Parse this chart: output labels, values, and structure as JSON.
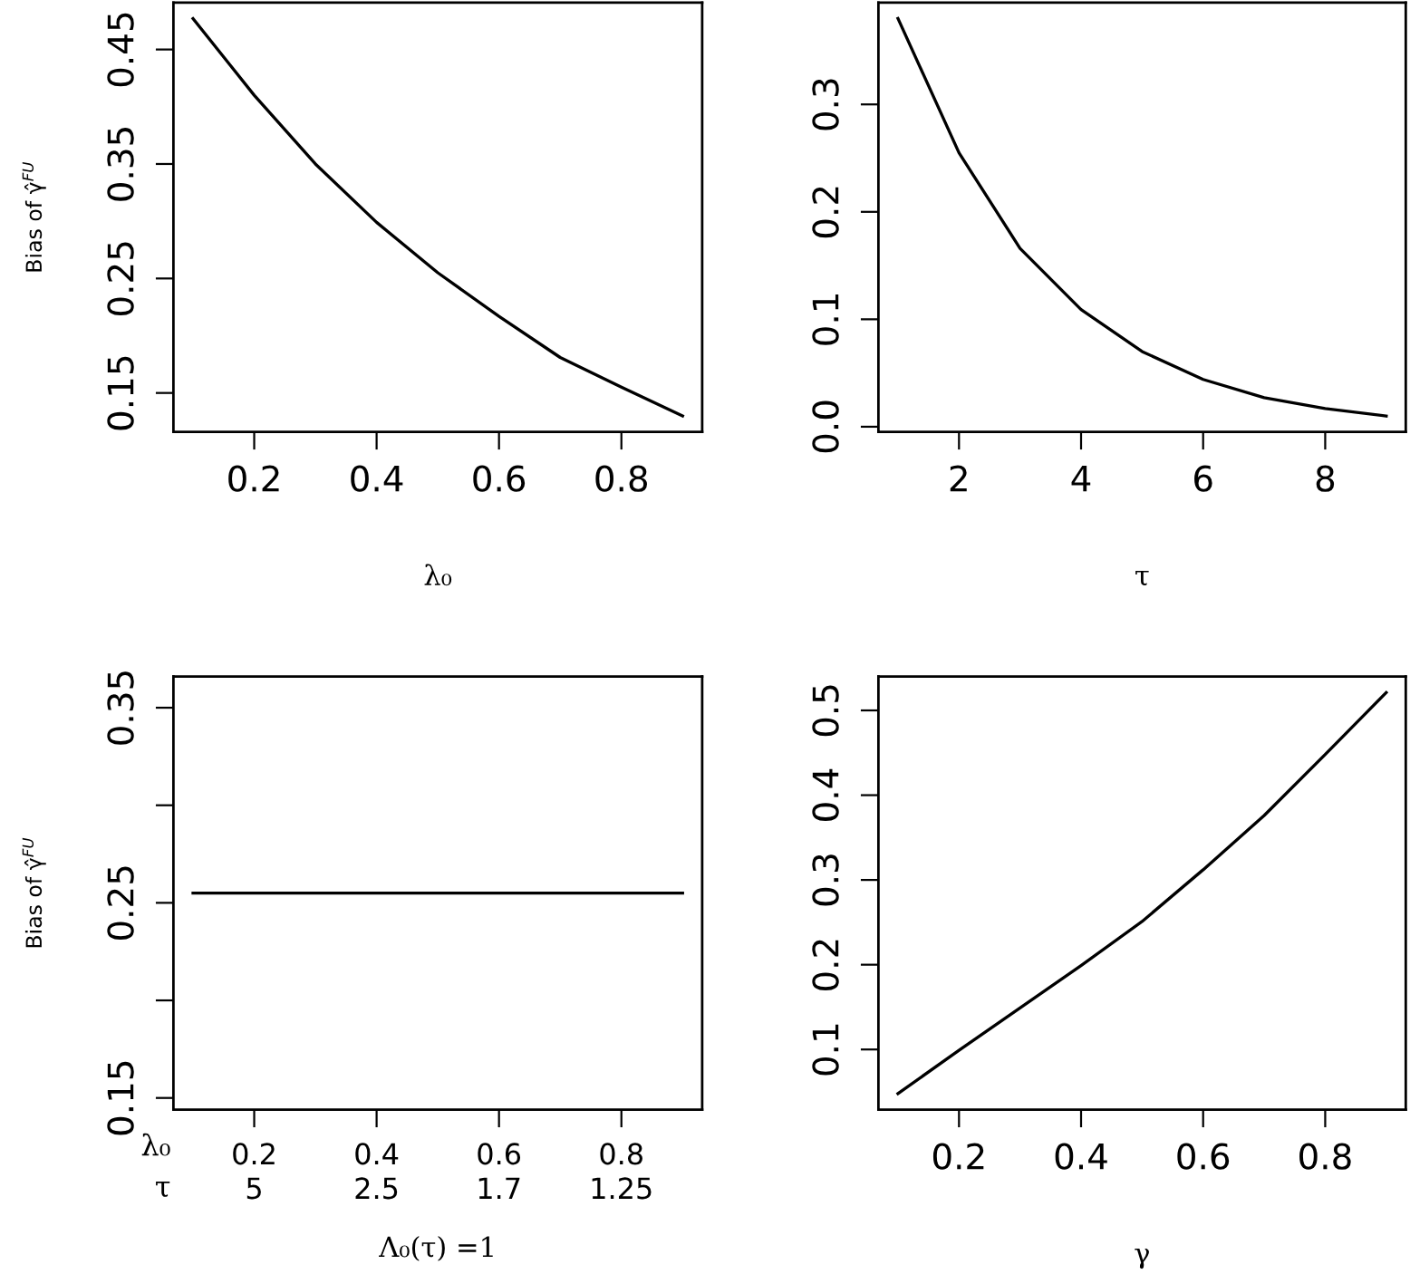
{
  "chart_data": [
    {
      "type": "line",
      "xlabel": "λ₀",
      "ylabel": "Bias of γ̂$^{FU}$",
      "x": [
        0.1,
        0.2,
        0.3,
        0.4,
        0.5,
        0.6,
        0.7,
        0.8,
        0.9
      ],
      "series": [
        {
          "color": "#000000",
          "values": [
            0.477,
            0.41,
            0.35,
            0.299,
            0.255,
            0.217,
            0.181,
            0.155,
            0.13
          ]
        }
      ],
      "xlim": [
        0.068,
        0.932
      ],
      "ylim": [
        0.116,
        0.491
      ],
      "xticks": [
        0.2,
        0.4,
        0.6,
        0.8
      ],
      "yticks": [
        0.15,
        0.25,
        0.35,
        0.45
      ],
      "grid": false,
      "legend": false,
      "marker": "none",
      "line_style": "solid"
    },
    {
      "type": "line",
      "xlabel": "τ",
      "x": [
        1,
        2,
        3,
        4,
        5,
        6,
        7,
        8,
        9
      ],
      "series": [
        {
          "color": "#000000",
          "values": [
            0.38,
            0.255,
            0.166,
            0.109,
            0.07,
            0.044,
            0.027,
            0.017,
            0.01
          ]
        }
      ],
      "xlim": [
        0.68,
        9.32
      ],
      "ylim": [
        -0.0048,
        0.3948
      ],
      "xticks": [
        2,
        4,
        6,
        8
      ],
      "yticks": [
        {
          "value": 0,
          "label": "0.0"
        },
        0.1,
        0.2,
        0.3
      ],
      "grid": false,
      "legend": false,
      "marker": "none",
      "line_style": "solid"
    },
    {
      "type": "line",
      "xlabel": "Λ₀(τ) =1",
      "ylabel": "Bias of γ̂$^{FU}$",
      "x": [
        0.1,
        0.2,
        0.3,
        0.4,
        0.5,
        0.6,
        0.7,
        0.8,
        0.9
      ],
      "series": [
        {
          "color": "#000000",
          "values": [
            0.255,
            0.255,
            0.255,
            0.255,
            0.255,
            0.255,
            0.255,
            0.255,
            0.255
          ]
        }
      ],
      "xlim": [
        0.068,
        0.932
      ],
      "ylim": [
        0.144,
        0.366
      ],
      "xticks": [
        0.2,
        0.4,
        0.6,
        0.8
      ],
      "yticks": [
        0.15,
        {
          "value": 0.2,
          "label": null
        },
        0.25,
        {
          "value": 0.3,
          "label": null
        },
        0.35
      ],
      "annotations": [
        "λ₀\nτ",
        "5",
        "2.5",
        "1.7",
        "1.25"
      ],
      "grid": false,
      "legend": false,
      "marker": "none",
      "line_style": "solid"
    },
    {
      "type": "line",
      "xlabel": "γ",
      "x": [
        0.1,
        0.2,
        0.3,
        0.4,
        0.5,
        0.6,
        0.7,
        0.8,
        0.9
      ],
      "series": [
        {
          "color": "#000000",
          "values": [
            0.048,
            0.099,
            0.149,
            0.199,
            0.251,
            0.312,
            0.376,
            0.448,
            0.521
          ]
        }
      ],
      "xlim": [
        0.068,
        0.932
      ],
      "ylim": [
        0.029,
        0.54
      ],
      "xticks": [
        0.2,
        0.4,
        0.6,
        0.8
      ],
      "yticks": [
        0.1,
        0.2,
        0.3,
        0.4,
        0.5
      ],
      "grid": false,
      "legend": false,
      "marker": "none",
      "line_style": "solid"
    }
  ]
}
